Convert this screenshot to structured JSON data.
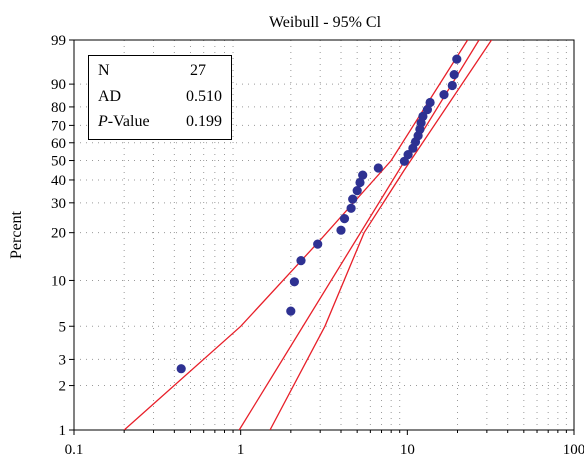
{
  "chart_data": {
    "type": "scatter",
    "title": "Weibull - 95% Cl",
    "xlabel": "",
    "ylabel": "Percent",
    "x_scale": "log",
    "y_scale": "weibull-probability",
    "xlim": [
      0.1,
      100
    ],
    "ylim": [
      1,
      99
    ],
    "x_ticks": [
      "0.1",
      "1",
      "10",
      "100"
    ],
    "y_ticks": [
      "1",
      "2",
      "3",
      "5",
      "10",
      "20",
      "30",
      "40",
      "50",
      "60",
      "70",
      "80",
      "90",
      "99"
    ],
    "grid": true,
    "points": [
      {
        "x": 0.44,
        "y": 2.6
      },
      {
        "x": 2.0,
        "y": 6.3
      },
      {
        "x": 2.1,
        "y": 9.8
      },
      {
        "x": 2.3,
        "y": 13.4
      },
      {
        "x": 2.9,
        "y": 17.0
      },
      {
        "x": 4.0,
        "y": 20.7
      },
      {
        "x": 4.2,
        "y": 24.3
      },
      {
        "x": 4.6,
        "y": 27.9
      },
      {
        "x": 4.7,
        "y": 31.5
      },
      {
        "x": 5.0,
        "y": 35.1
      },
      {
        "x": 5.2,
        "y": 38.8
      },
      {
        "x": 5.4,
        "y": 42.4
      },
      {
        "x": 6.7,
        "y": 46.0
      },
      {
        "x": 9.6,
        "y": 49.6
      },
      {
        "x": 10.1,
        "y": 53.3
      },
      {
        "x": 10.8,
        "y": 56.9
      },
      {
        "x": 11.2,
        "y": 60.5
      },
      {
        "x": 11.6,
        "y": 64.1
      },
      {
        "x": 11.9,
        "y": 67.7
      },
      {
        "x": 12.1,
        "y": 71.4
      },
      {
        "x": 12.4,
        "y": 75.0
      },
      {
        "x": 13.2,
        "y": 78.6
      },
      {
        "x": 13.7,
        "y": 82.2
      },
      {
        "x": 16.6,
        "y": 85.8
      },
      {
        "x": 18.6,
        "y": 89.5
      },
      {
        "x": 19.1,
        "y": 93.1
      },
      {
        "x": 19.8,
        "y": 96.7
      }
    ],
    "fit_line": [
      {
        "x": 0.98,
        "y": 1
      },
      {
        "x": 26.9,
        "y": 99
      }
    ],
    "ci_lower": [
      {
        "x": 0.2,
        "y": 1
      },
      {
        "x": 1.0,
        "y": 5
      },
      {
        "x": 3.0,
        "y": 18
      },
      {
        "x": 8.0,
        "y": 50
      },
      {
        "x": 23.0,
        "y": 99
      }
    ],
    "ci_upper": [
      {
        "x": 1.5,
        "y": 1
      },
      {
        "x": 3.2,
        "y": 5
      },
      {
        "x": 5.5,
        "y": 20
      },
      {
        "x": 9.6,
        "y": 45
      },
      {
        "x": 32.0,
        "y": 99
      }
    ],
    "colors": {
      "points": "#2e3192",
      "lines": "#e8202a",
      "grid": "#9a9a9a"
    }
  },
  "stats": [
    {
      "label": "N",
      "value": "27"
    },
    {
      "label": "AD",
      "value": "0.510"
    },
    {
      "label_italic": "P",
      "label_rest": "-Value",
      "value": "0.199"
    }
  ]
}
